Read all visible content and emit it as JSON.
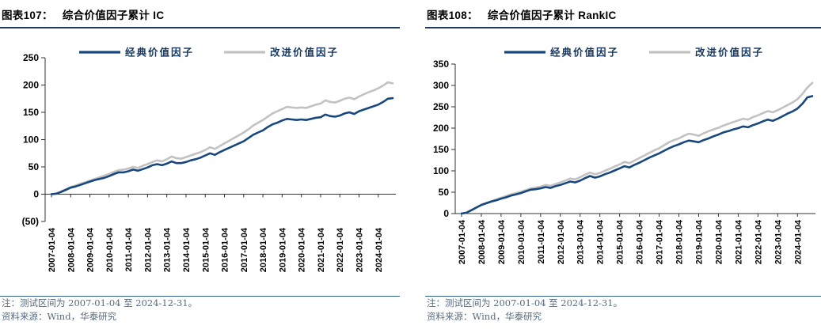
{
  "page": {
    "background": "#ffffff",
    "navy": "#17477E",
    "gray": "#C2C2C2",
    "title_underline": "#1F3864",
    "note_separator": "#2F6093",
    "note_color": "#566B80"
  },
  "chart_data": [
    {
      "type": "line",
      "title_prefix": "图表107：",
      "title": "综合价值因子累计 IC",
      "legend_position": "top-center",
      "grid": false,
      "ylim": [
        -50,
        250
      ],
      "y_ticks": [
        250,
        200,
        150,
        100,
        50,
        0,
        -50
      ],
      "y_tick_labels": [
        "250",
        "200",
        "150",
        "100",
        "50",
        "0",
        "(50)"
      ],
      "x_step": "quarterly",
      "x_range": [
        "2007-01-04",
        "2024-12-31"
      ],
      "x_tick_labels": [
        "2007-01-04",
        "2008-01-04",
        "2009-01-04",
        "2010-01-04",
        "2011-01-04",
        "2012-01-04",
        "2013-01-04",
        "2014-01-04",
        "2015-01-04",
        "2016-01-04",
        "2017-01-04",
        "2018-01-04",
        "2019-01-04",
        "2020-01-04",
        "2021-01-04",
        "2022-01-04",
        "2023-01-04",
        "2024-01-04"
      ],
      "series": [
        {
          "name": "经典价值因子",
          "color": "#17477E",
          "values": [
            0,
            1,
            4,
            8,
            12,
            14,
            17,
            20,
            23,
            26,
            28,
            30,
            33,
            37,
            40,
            40,
            42,
            45,
            43,
            46,
            49,
            53,
            55,
            53,
            56,
            60,
            57,
            57,
            59,
            62,
            64,
            67,
            71,
            75,
            72,
            77,
            81,
            85,
            89,
            93,
            97,
            103,
            109,
            113,
            117,
            123,
            128,
            131,
            135,
            138,
            137,
            136,
            137,
            136,
            138,
            140,
            141,
            146,
            143,
            142,
            144,
            148,
            150,
            147,
            152,
            155,
            158,
            161,
            164,
            169,
            175,
            176
          ]
        },
        {
          "name": "改进价值因子",
          "color": "#C2C2C2",
          "values": [
            0,
            1,
            5,
            9,
            13,
            16,
            19,
            22,
            25,
            28,
            31,
            34,
            37,
            41,
            44,
            45,
            47,
            50,
            48,
            52,
            55,
            59,
            62,
            60,
            64,
            69,
            66,
            65,
            68,
            71,
            74,
            77,
            81,
            86,
            83,
            88,
            93,
            98,
            103,
            108,
            113,
            119,
            126,
            131,
            136,
            142,
            148,
            152,
            156,
            160,
            159,
            158,
            159,
            158,
            161,
            164,
            166,
            172,
            169,
            168,
            171,
            175,
            177,
            174,
            179,
            183,
            187,
            190,
            194,
            199,
            205,
            203
          ]
        }
      ],
      "note": "注：测试区间为 2007-01-04 至 2024-12-31。",
      "source": "资料来源：Wind，华泰研究"
    },
    {
      "type": "line",
      "title_prefix": "图表108：",
      "title": "综合价值因子累计 RankIC",
      "legend_position": "top-center",
      "grid": false,
      "ylim": [
        0,
        350
      ],
      "y_ticks": [
        350,
        300,
        250,
        200,
        150,
        100,
        50,
        0
      ],
      "y_tick_labels": [
        "350",
        "300",
        "250",
        "200",
        "150",
        "100",
        "50",
        "0"
      ],
      "x_step": "quarterly",
      "x_range": [
        "2007-01-04",
        "2024-12-31"
      ],
      "x_tick_labels": [
        "2007-01-04",
        "2008-01-04",
        "2009-01-04",
        "2010-01-04",
        "2011-01-04",
        "2012-01-04",
        "2013-01-04",
        "2014-01-04",
        "2015-01-04",
        "2016-01-04",
        "2017-01-04",
        "2018-01-04",
        "2019-01-04",
        "2020-01-04",
        "2021-01-04",
        "2022-01-04",
        "2023-01-04",
        "2024-01-04"
      ],
      "series": [
        {
          "name": "经典价值因子",
          "color": "#17477E",
          "values": [
            0,
            2,
            8,
            14,
            20,
            24,
            28,
            31,
            35,
            38,
            42,
            45,
            48,
            52,
            56,
            57,
            59,
            62,
            60,
            64,
            67,
            71,
            75,
            73,
            77,
            83,
            88,
            84,
            87,
            92,
            96,
            101,
            106,
            111,
            108,
            114,
            119,
            125,
            131,
            136,
            141,
            147,
            153,
            158,
            162,
            167,
            171,
            169,
            167,
            172,
            176,
            181,
            185,
            190,
            193,
            197,
            200,
            204,
            202,
            207,
            211,
            216,
            220,
            217,
            222,
            228,
            234,
            239,
            246,
            257,
            272,
            275
          ]
        },
        {
          "name": "改进价值因子",
          "color": "#C2C2C2",
          "values": [
            0,
            2,
            8,
            14,
            21,
            25,
            29,
            33,
            37,
            41,
            45,
            48,
            51,
            55,
            59,
            61,
            63,
            67,
            65,
            69,
            73,
            77,
            82,
            80,
            85,
            91,
            96,
            92,
            95,
            100,
            105,
            110,
            115,
            121,
            118,
            124,
            130,
            136,
            142,
            148,
            153,
            160,
            167,
            172,
            176,
            182,
            187,
            185,
            182,
            188,
            193,
            197,
            201,
            206,
            210,
            214,
            218,
            222,
            220,
            226,
            230,
            235,
            240,
            237,
            242,
            248,
            254,
            260,
            268,
            280,
            295,
            306
          ]
        }
      ],
      "note": "注：测试区间为 2007-01-04 至 2024-12-31。",
      "source": "资料来源：Wind，华泰研究"
    }
  ]
}
